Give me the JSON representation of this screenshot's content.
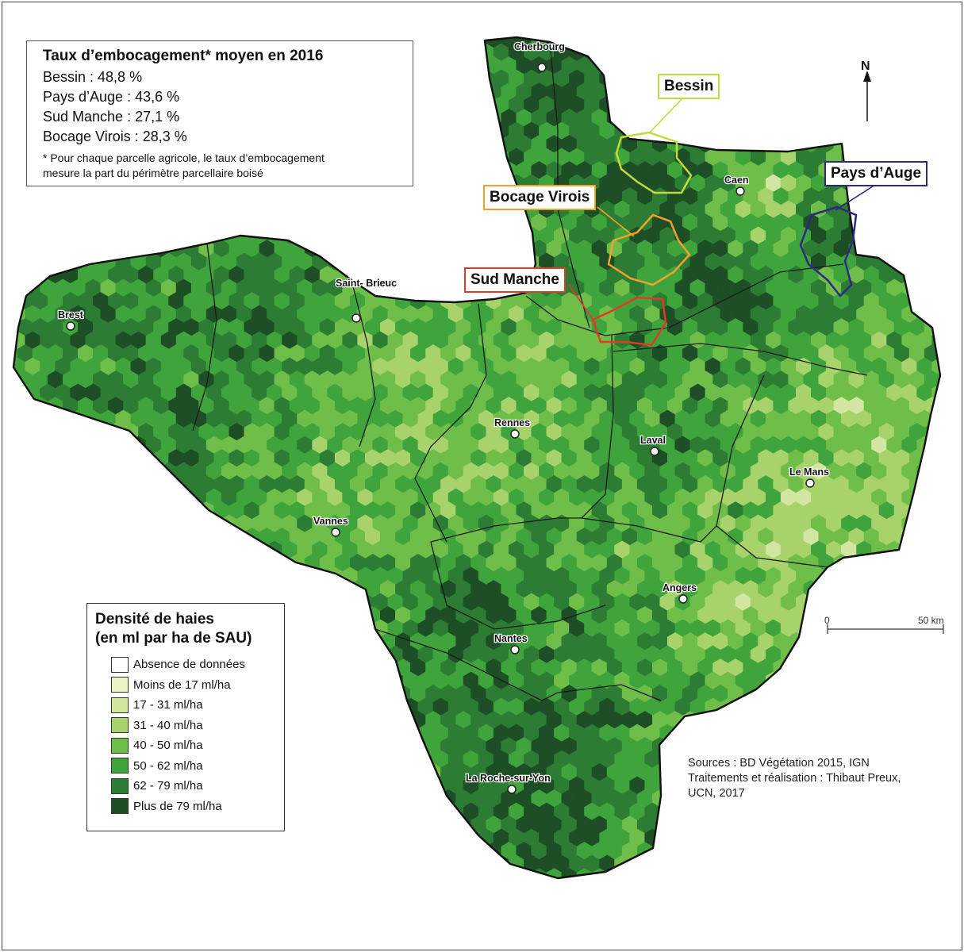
{
  "stats": {
    "title": "Taux d’embocagement* moyen en 2016",
    "lines": [
      "Bessin : 48,8 %",
      "Pays d’Auge : 43,6 %",
      "Sud Manche : 27,1 %",
      "Bocage Virois : 28,3 %"
    ],
    "note_line1": "* Pour chaque parcelle agricole, le taux d’embocagement",
    "note_line2": "mesure la part du périmètre parcellaire boisé"
  },
  "legend": {
    "title_line1": "Densité de haies",
    "title_line2": "(en ml par ha de SAU)",
    "items": [
      {
        "label": "Absence de données",
        "color": "#ffffff"
      },
      {
        "label": "Moins de 17 ml/ha",
        "color": "#ecf3c4"
      },
      {
        "label": "17 - 31 ml/ha",
        "color": "#d3e6a1"
      },
      {
        "label": "31 - 40 ml/ha",
        "color": "#a8d26b"
      },
      {
        "label": "40 - 50 ml/ha",
        "color": "#6fbe4a"
      },
      {
        "label": "50 - 62 ml/ha",
        "color": "#3fa43c"
      },
      {
        "label": "62 - 79 ml/ha",
        "color": "#2c7c34"
      },
      {
        "label": "Plus de 79 ml/ha",
        "color": "#1d4e25"
      }
    ]
  },
  "regions": {
    "bessin": {
      "label": "Bessin",
      "color": "#c6d93a"
    },
    "pays_auge": {
      "label": "Pays d’Auge",
      "color": "#2e2a82"
    },
    "bocage_virois": {
      "label": "Bocage Virois",
      "color": "#f0a22b"
    },
    "sud_manche": {
      "label": "Sud Manche",
      "color": "#e03b26"
    }
  },
  "cities": [
    "Cherbourg",
    "Caen",
    "Saint- Brieuc",
    "Brest",
    "Rennes",
    "Laval",
    "Le Mans",
    "Vannes",
    "Angers",
    "Nantes",
    "La Roche-sur-Yon"
  ],
  "north_label": "N",
  "scale": {
    "start": "0",
    "end": "50 km"
  },
  "sources": {
    "line1": "Sources : BD Végétation 2015, IGN",
    "line2": "Traitements et réalisation : Thibaut Preux,",
    "line3": "UCN, 2017"
  }
}
